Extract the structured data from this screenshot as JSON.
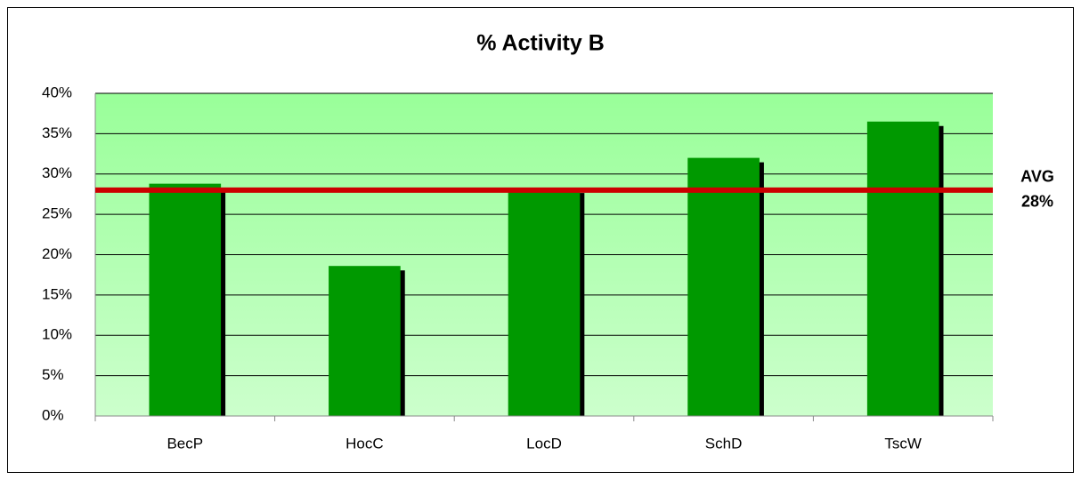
{
  "chart_data": {
    "type": "bar",
    "title": "% Activity B",
    "categories": [
      "BecP",
      "HocC",
      "LocD",
      "SchD",
      "TscW"
    ],
    "values": [
      28.8,
      18.6,
      28.2,
      32.0,
      36.5
    ],
    "color": "#009900",
    "ylim": [
      0,
      40
    ],
    "yticks": [
      {
        "value": 0,
        "label": "0%"
      },
      {
        "value": 5,
        "label": "5%"
      },
      {
        "value": 10,
        "label": "10%"
      },
      {
        "value": 15,
        "label": "15%"
      },
      {
        "value": 20,
        "label": "20%"
      },
      {
        "value": 25,
        "label": "25%"
      },
      {
        "value": 30,
        "label": "30%"
      },
      {
        "value": 35,
        "label": "35%"
      },
      {
        "value": 40,
        "label": "40%"
      }
    ],
    "grid": true,
    "average": {
      "label": "AVG",
      "value": 28,
      "value_label": "28%",
      "color": "#cc0000"
    }
  }
}
